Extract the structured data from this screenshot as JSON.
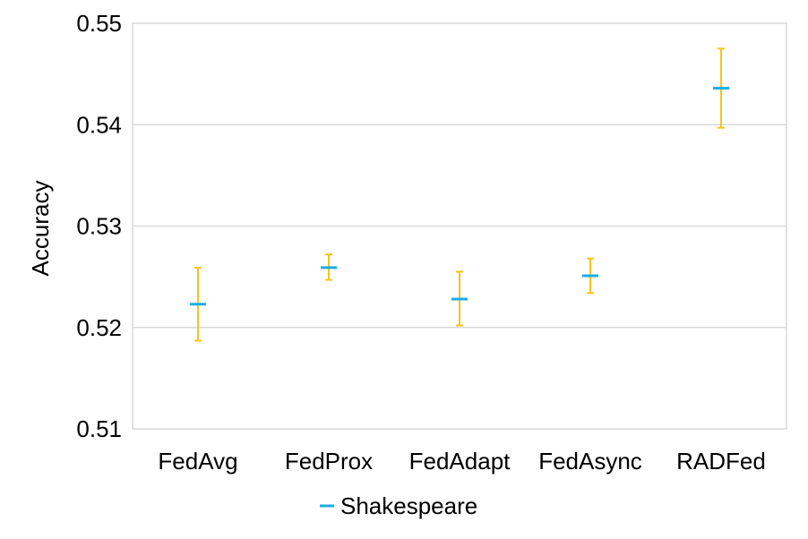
{
  "chart_data": {
    "type": "scatter",
    "title": "",
    "xlabel": "",
    "ylabel": "Accuracy",
    "categories": [
      "FedAvg",
      "FedProx",
      "FedAdapt",
      "FedAsync",
      "RADFed"
    ],
    "ylim": [
      0.51,
      0.55
    ],
    "yticks": [
      "0.51",
      "0.52",
      "0.53",
      "0.54",
      "0.55"
    ],
    "grid": true,
    "legend_position": "bottom",
    "series": [
      {
        "name": "Shakespeare",
        "values": [
          0.5223,
          0.5259,
          0.5228,
          0.5251,
          0.5436
        ],
        "error_low": [
          0.5187,
          0.5247,
          0.5202,
          0.5234,
          0.5397
        ],
        "error_high": [
          0.5259,
          0.5272,
          0.5255,
          0.5268,
          0.5475
        ],
        "marker_color": "#1aaee5",
        "error_color": "#f5c518"
      }
    ]
  }
}
